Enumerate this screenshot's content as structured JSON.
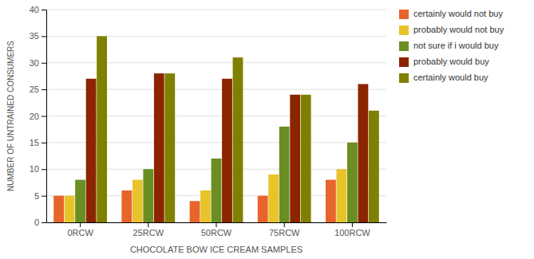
{
  "chart_data": {
    "type": "bar",
    "categories": [
      "0RCW",
      "25RCW",
      "50RCW",
      "75RCW",
      "100RCW"
    ],
    "series": [
      {
        "name": "certainly would not buy",
        "color": "#E8642A",
        "values": [
          5,
          6,
          4,
          5,
          8
        ]
      },
      {
        "name": "probably would not buy",
        "color": "#E8C32A",
        "values": [
          5,
          8,
          6,
          9,
          10
        ]
      },
      {
        "name": "not sure if i would buy",
        "color": "#6B8E23",
        "values": [
          8,
          10,
          12,
          18,
          15
        ]
      },
      {
        "name": "probably would buy",
        "color": "#8B2500",
        "values": [
          27,
          28,
          27,
          24,
          26
        ]
      },
      {
        "name": "certainly would buy",
        "color": "#808000",
        "values": [
          35,
          28,
          31,
          24,
          21
        ]
      }
    ],
    "xlabel": "CHOCOLATE BOW ICE CREAM SAMPLES",
    "ylabel": "NUMBER OF UNTRAINED CONSUMERS",
    "ylim": [
      0,
      40
    ],
    "yticks": [
      0,
      5,
      10,
      15,
      20,
      25,
      30,
      35,
      40
    ],
    "grid": true,
    "legend": "right"
  }
}
